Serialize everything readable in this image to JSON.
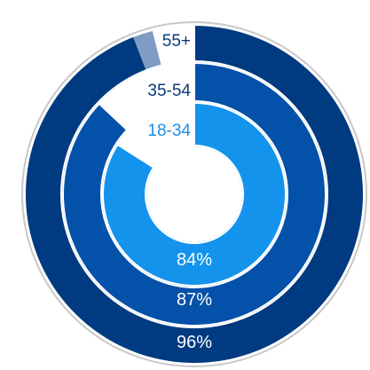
{
  "chart_data": {
    "type": "radial-bar",
    "max": 100,
    "series": [
      {
        "name": "55+",
        "value": 96,
        "value_label": "96%",
        "color": "#003a80",
        "cap_color": "#7f9cc4",
        "label_color": "#0b3a78"
      },
      {
        "name": "35-54",
        "value": 87,
        "value_label": "87%",
        "color": "#0351a8",
        "label_color": "#0b3a78"
      },
      {
        "name": "18-34",
        "value": 84,
        "value_label": "84%",
        "color": "#1393ec",
        "label_color": "#1f8ee0"
      }
    ]
  }
}
